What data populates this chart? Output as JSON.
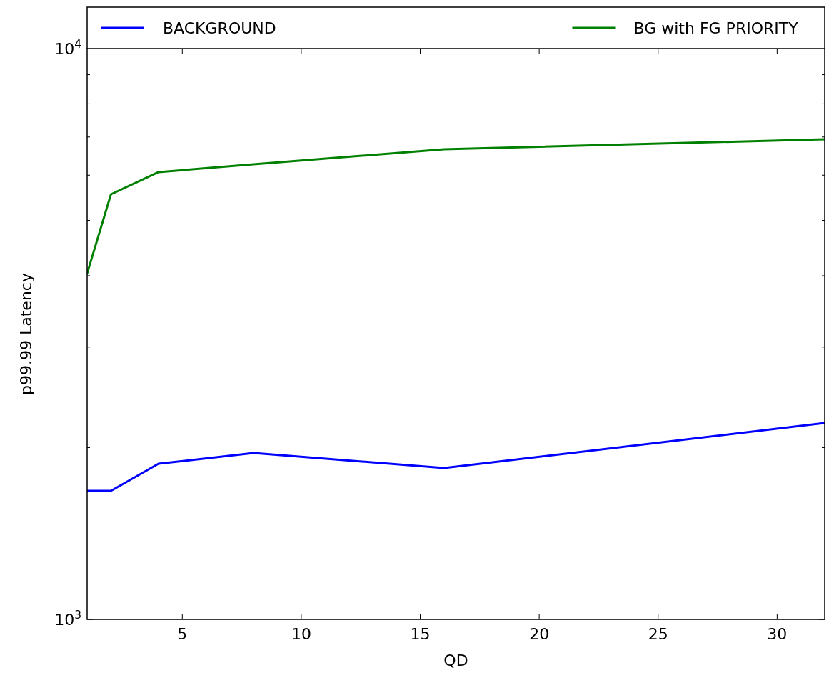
{
  "chart_data": {
    "type": "line",
    "xlabel": "QD",
    "ylabel": "p99.99 Latency",
    "log": "y",
    "legend": "top",
    "grid": false,
    "xlim": [
      1,
      32
    ],
    "xticks": [
      5,
      10,
      15,
      20,
      25,
      30
    ],
    "ylim": [
      1000,
      10000
    ],
    "yticks": [
      {
        "value": 1000,
        "label": "10$^{3}$"
      },
      {
        "value": 2000,
        "label": null
      },
      {
        "value": 3000,
        "label": null
      },
      {
        "value": 4000,
        "label": null
      },
      {
        "value": 5000,
        "label": null
      },
      {
        "value": 6000,
        "label": null
      },
      {
        "value": 7000,
        "label": null
      },
      {
        "value": 8000,
        "label": null
      },
      {
        "value": 9000,
        "label": null
      },
      {
        "value": 10000,
        "label": "10$^{4}$"
      }
    ],
    "x": [
      1,
      2,
      4,
      8,
      16,
      32
    ],
    "series": [
      {
        "name": "BACKGROUND",
        "color": "#0000ff",
        "values": [
          1680,
          1680,
          1874,
          1957,
          1842,
          2209
        ]
      },
      {
        "name": "BG with FG PRIORITY",
        "color": "#008000",
        "values": [
          4035,
          5555,
          6075,
          6270,
          6660,
          6935
        ]
      }
    ]
  }
}
